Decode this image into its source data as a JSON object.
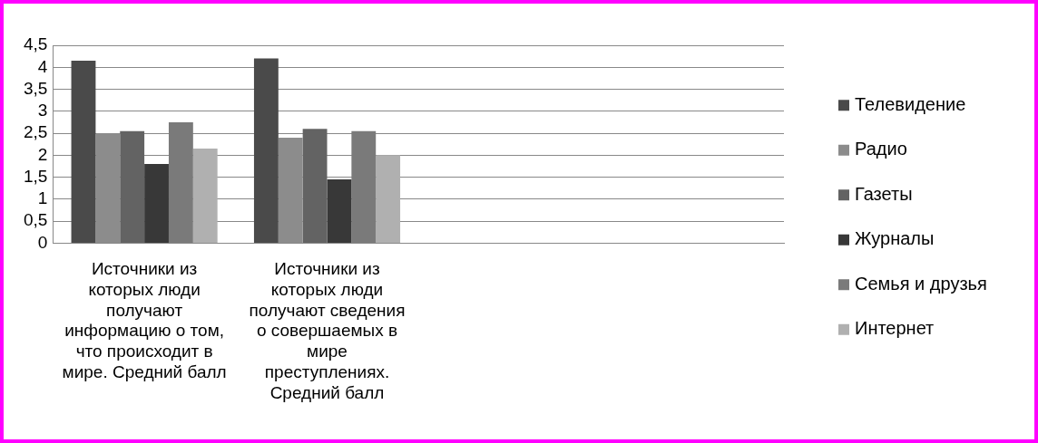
{
  "chart_data": {
    "type": "bar",
    "categories": [
      "Источники из которых люди получают информацию о том, что происходит в мире. Средний балл",
      "Источники из которых люди получают сведения о совершаемых в мире преступлениях. Средний балл",
      null,
      null
    ],
    "series": [
      {
        "name": "Телевидение",
        "color": "#4a4a4a",
        "values": [
          4.15,
          4.2,
          null,
          null
        ]
      },
      {
        "name": "Радио",
        "color": "#8c8c8c",
        "values": [
          2.5,
          2.4,
          null,
          null
        ]
      },
      {
        "name": "Газеты",
        "color": "#636363",
        "values": [
          2.55,
          2.6,
          null,
          null
        ]
      },
      {
        "name": "Журналы",
        "color": "#383838",
        "values": [
          1.8,
          1.45,
          null,
          null
        ]
      },
      {
        "name": "Семья и друзья",
        "color": "#7a7a7a",
        "values": [
          2.75,
          2.55,
          null,
          null
        ]
      },
      {
        "name": "Интернет",
        "color": "#b0b0b0",
        "values": [
          2.15,
          2.0,
          null,
          null
        ]
      }
    ],
    "ylim": [
      0,
      4.5
    ],
    "yticks": [
      0,
      {
        "value": 0.5,
        "label": "0,5"
      },
      1,
      {
        "value": 1.5,
        "label": "1,5"
      },
      2,
      {
        "value": 2.5,
        "label": "2,5"
      },
      3,
      {
        "value": 3.5,
        "label": "3,5"
      },
      4,
      {
        "value": 4.5,
        "label": "4,5"
      }
    ],
    "grid": "y",
    "legend": "right"
  }
}
